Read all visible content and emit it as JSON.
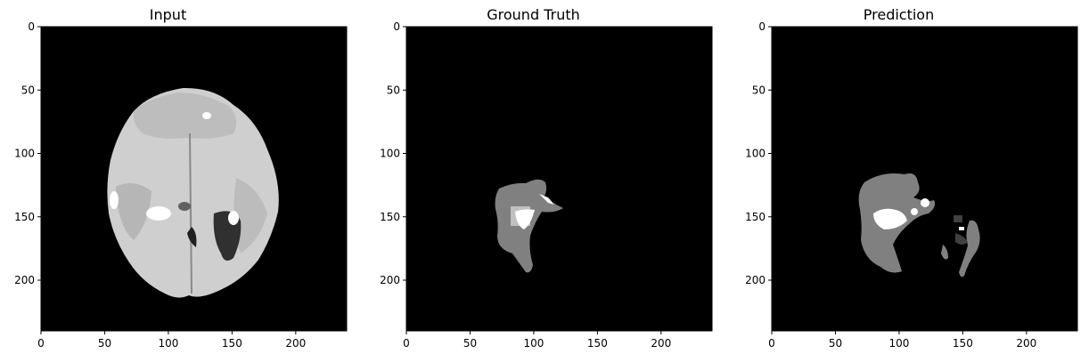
{
  "panels": [
    {
      "title": "Input",
      "kind": "mri-image"
    },
    {
      "title": "Ground Truth",
      "kind": "segmentation-mask"
    },
    {
      "title": "Prediction",
      "kind": "segmentation-mask"
    }
  ],
  "axes": {
    "x_ticks": [
      "0",
      "50",
      "100",
      "150",
      "200"
    ],
    "y_ticks": [
      "0",
      "50",
      "100",
      "150",
      "200"
    ],
    "x_tick_values": [
      0,
      50,
      100,
      150,
      200
    ],
    "y_tick_values": [
      0,
      50,
      100,
      150,
      200
    ],
    "extent": [
      0,
      240
    ]
  },
  "colors": {
    "background": "#000000",
    "edema": "#808080",
    "necrotic": "#404040",
    "enhancing": "#ffffff",
    "core": "#c0c0c0"
  }
}
